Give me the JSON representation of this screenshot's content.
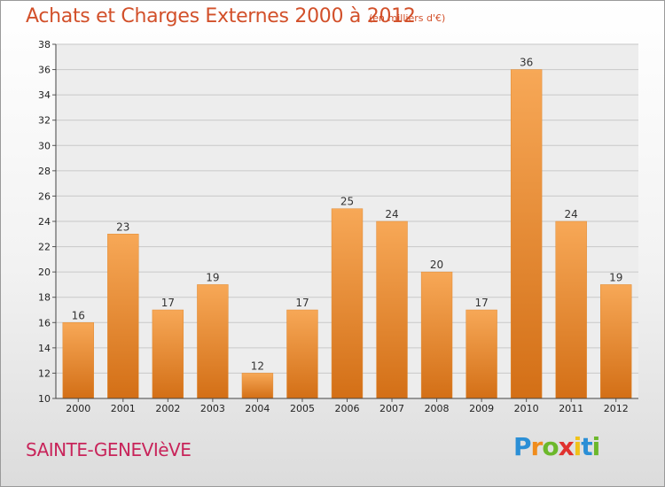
{
  "title": "Achats et Charges Externes 2000 à 2012",
  "unit": "(en milliers d'€)",
  "commune": "SAINTE-GENEVIèVE",
  "logo": "Proxiti",
  "colors": {
    "title": "#d2502a",
    "commune": "#c8245a",
    "bar_light": "#f6a550",
    "bar_dark": "#d9761a"
  },
  "chart_data": {
    "type": "bar",
    "title": "Achats et Charges Externes 2000 à 2012",
    "subtitle": "(en milliers d'€)",
    "categories": [
      "2000",
      "2001",
      "2002",
      "2003",
      "2004",
      "2005",
      "2006",
      "2007",
      "2008",
      "2009",
      "2010",
      "2011",
      "2012"
    ],
    "values": [
      16,
      23,
      17,
      19,
      12,
      17,
      25,
      24,
      20,
      17,
      36,
      24,
      19
    ],
    "ylim": [
      10,
      38
    ],
    "yticks": [
      10,
      12,
      14,
      16,
      18,
      20,
      22,
      24,
      26,
      28,
      30,
      32,
      34,
      36,
      38
    ],
    "grid": true,
    "legend": "none"
  }
}
